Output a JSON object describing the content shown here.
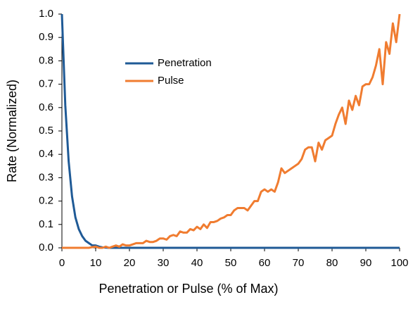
{
  "chart_data": {
    "type": "line",
    "xlabel": "Penetration or Pulse (% of Max)",
    "ylabel": "Rate  (Normalized)",
    "x": [
      0,
      1,
      2,
      3,
      4,
      5,
      6,
      7,
      8,
      9,
      10,
      11,
      12,
      13,
      14,
      15,
      16,
      17,
      18,
      19,
      20,
      21,
      22,
      23,
      24,
      25,
      26,
      27,
      28,
      29,
      30,
      31,
      32,
      33,
      34,
      35,
      36,
      37,
      38,
      39,
      40,
      41,
      42,
      43,
      44,
      45,
      46,
      47,
      48,
      49,
      50,
      51,
      52,
      53,
      54,
      55,
      56,
      57,
      58,
      59,
      60,
      61,
      62,
      63,
      64,
      65,
      66,
      67,
      68,
      69,
      70,
      71,
      72,
      73,
      74,
      75,
      76,
      77,
      78,
      79,
      80,
      81,
      82,
      83,
      84,
      85,
      86,
      87,
      88,
      89,
      90,
      91,
      92,
      93,
      94,
      95,
      96,
      97,
      98,
      99,
      100
    ],
    "series": [
      {
        "name": "Penetration",
        "color": "#1f5a96",
        "values": [
          1,
          0.61,
          0.37,
          0.22,
          0.13,
          0.08,
          0.05,
          0.03,
          0.02,
          0.01,
          0.01,
          0.005,
          0.002,
          0.001,
          0,
          0,
          0,
          0,
          0,
          0,
          0,
          0,
          0,
          0,
          0,
          0,
          0,
          0,
          0,
          0,
          0,
          0,
          0,
          0,
          0,
          0,
          0,
          0,
          0,
          0,
          0,
          0,
          0,
          0,
          0,
          0,
          0,
          0,
          0,
          0,
          0,
          0,
          0,
          0,
          0,
          0,
          0,
          0,
          0,
          0,
          0,
          0,
          0,
          0,
          0,
          0,
          0,
          0,
          0,
          0,
          0,
          0,
          0,
          0,
          0,
          0,
          0,
          0,
          0,
          0,
          0,
          0,
          0,
          0,
          0,
          0,
          0,
          0,
          0,
          0,
          0,
          0,
          0,
          0,
          0,
          0,
          0,
          0,
          0,
          0,
          0
        ]
      },
      {
        "name": "Pulse",
        "color": "#f07c30",
        "values": [
          0,
          0,
          0,
          0,
          0,
          0,
          0,
          0,
          0,
          0.003,
          0.005,
          0,
          0,
          0.005,
          0,
          0.005,
          0.01,
          0.005,
          0.015,
          0.01,
          0.01,
          0.015,
          0.02,
          0.02,
          0.02,
          0.03,
          0.025,
          0.025,
          0.03,
          0.04,
          0.04,
          0.035,
          0.05,
          0.055,
          0.05,
          0.07,
          0.065,
          0.065,
          0.08,
          0.075,
          0.09,
          0.08,
          0.1,
          0.085,
          0.11,
          0.11,
          0.115,
          0.125,
          0.13,
          0.14,
          0.14,
          0.16,
          0.17,
          0.17,
          0.17,
          0.16,
          0.18,
          0.2,
          0.2,
          0.24,
          0.25,
          0.24,
          0.25,
          0.24,
          0.28,
          0.34,
          0.32,
          0.33,
          0.34,
          0.35,
          0.36,
          0.38,
          0.42,
          0.43,
          0.43,
          0.37,
          0.45,
          0.42,
          0.46,
          0.47,
          0.48,
          0.53,
          0.57,
          0.6,
          0.53,
          0.63,
          0.59,
          0.65,
          0.61,
          0.69,
          0.7,
          0.7,
          0.73,
          0.78,
          0.85,
          0.7,
          0.88,
          0.83,
          0.96,
          0.88,
          1
        ]
      }
    ],
    "xlim": [
      0,
      100
    ],
    "xticks": [
      0,
      10,
      20,
      30,
      40,
      50,
      60,
      70,
      80,
      90,
      100
    ],
    "ylim": [
      0,
      1
    ],
    "yticks": [
      {
        "value": 0,
        "label": "0.0"
      },
      {
        "value": 0.1,
        "label": "0.1"
      },
      {
        "value": 0.2,
        "label": "0.2"
      },
      {
        "value": 0.3,
        "label": "0.3"
      },
      {
        "value": 0.4,
        "label": "0.4"
      },
      {
        "value": 0.5,
        "label": "0.5"
      },
      {
        "value": 0.6,
        "label": "0.6"
      },
      {
        "value": 0.7,
        "label": "0.7"
      },
      {
        "value": 0.8,
        "label": "0.8"
      },
      {
        "value": 0.9,
        "label": "0.9"
      },
      {
        "value": 1,
        "label": "1.0"
      }
    ],
    "grid": false
  }
}
